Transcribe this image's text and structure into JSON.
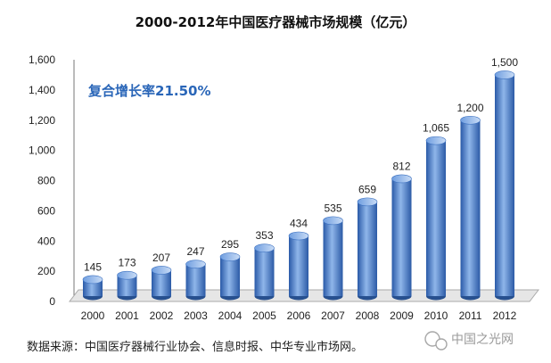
{
  "chart_data": {
    "type": "bar",
    "title": "2000-2012年中国医疗器械市场规模（亿元）",
    "categories": [
      "2000",
      "2001",
      "2002",
      "2003",
      "2004",
      "2005",
      "2006",
      "2007",
      "2008",
      "2009",
      "2010",
      "2011",
      "2012"
    ],
    "values": [
      145,
      173,
      207,
      247,
      295,
      353,
      434,
      535,
      659,
      812,
      1065,
      1200,
      1500
    ],
    "value_labels": [
      "145",
      "173",
      "207",
      "247",
      "295",
      "353",
      "434",
      "535",
      "659",
      "812",
      "1,065",
      "1,200",
      "1,500"
    ],
    "ylim": [
      0,
      1600
    ],
    "yticks": [
      0,
      200,
      400,
      600,
      800,
      1000,
      1200,
      1400,
      1600
    ],
    "ytick_labels": [
      "0",
      "200",
      "400",
      "600",
      "800",
      "1,000",
      "1,200",
      "1,400",
      "1,600"
    ],
    "annotation": "复合增长率21.50%",
    "bar_color": "#3f78c8",
    "grid": false,
    "legend": "none"
  },
  "source_note": "数据来源：中国医疗器械行业协会、信息时报、中华专业市场网。",
  "watermark": {
    "text": "中国之光网",
    "icon": "wechat-icon"
  }
}
